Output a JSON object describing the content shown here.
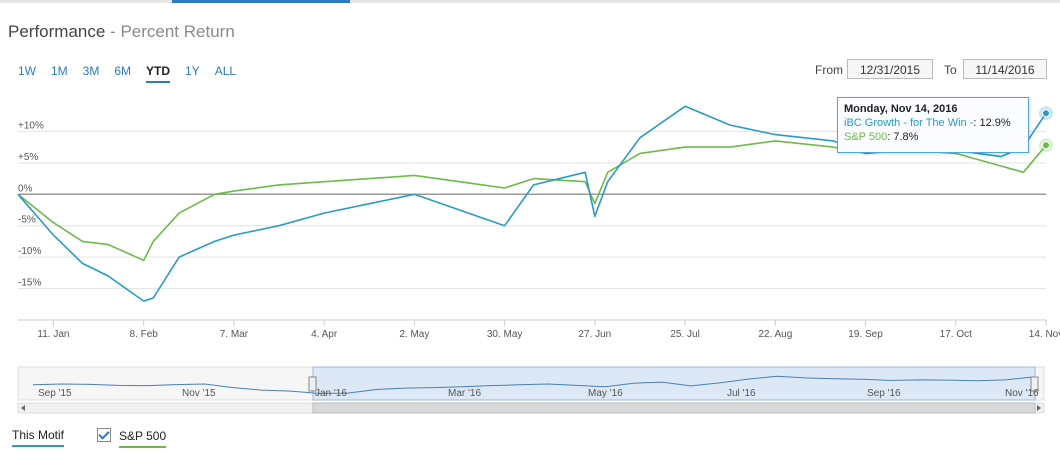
{
  "header": {
    "title": "Performance",
    "subtitle": "- Percent Return"
  },
  "range_buttons": [
    {
      "label": "1W",
      "active": false
    },
    {
      "label": "1M",
      "active": false
    },
    {
      "label": "3M",
      "active": false
    },
    {
      "label": "6M",
      "active": false
    },
    {
      "label": "YTD",
      "active": true
    },
    {
      "label": "1Y",
      "active": false
    },
    {
      "label": "ALL",
      "active": false
    }
  ],
  "date_range": {
    "from_label": "From",
    "from_value": "12/31/2015",
    "to_label": "To",
    "to_value": "11/14/2016"
  },
  "tooltip": {
    "date": "Monday, Nov 14, 2016",
    "series1_name": "iBC Growth - for The Win -",
    "series1_value": ": 12.9%",
    "series2_name": "S&P 500",
    "series2_value": ": 7.8%"
  },
  "legend": {
    "motif_label": "This Motif",
    "sp_label": "S&P 500",
    "sp_checked": true
  },
  "colors": {
    "motif": "#2a9bc6",
    "sp500": "#6cbb4a",
    "navigator_fill": "#dce8f6"
  },
  "navigator": {
    "labels": [
      "Sep '15",
      "Nov '15",
      "Jan '16",
      "Mar '16",
      "May '16",
      "Jul '16",
      "Sep '16",
      "Nov '16"
    ]
  },
  "chart_data": {
    "type": "line",
    "title": "",
    "xlabel": "",
    "ylabel": "",
    "x_ticks": [
      "11. Jan",
      "8. Feb",
      "7. Mar",
      "4. Apr",
      "2. May",
      "30. May",
      "27. Jun",
      "25. Jul",
      "22. Aug",
      "19. Sep",
      "17. Oct",
      "14. Nov"
    ],
    "y_ticks": [
      "+10%",
      "+5%",
      "0%",
      "-5%",
      "-10%",
      "-15%"
    ],
    "ylim": [
      -20,
      15
    ],
    "x": [
      "2015-12-31",
      "2016-01-11",
      "2016-01-20",
      "2016-01-28",
      "2016-02-08",
      "2016-02-11",
      "2016-02-19",
      "2016-03-01",
      "2016-03-07",
      "2016-03-21",
      "2016-04-04",
      "2016-04-18",
      "2016-05-02",
      "2016-05-16",
      "2016-05-30",
      "2016-06-08",
      "2016-06-24",
      "2016-06-27",
      "2016-07-01",
      "2016-07-11",
      "2016-07-25",
      "2016-08-08",
      "2016-08-22",
      "2016-09-09",
      "2016-09-19",
      "2016-10-03",
      "2016-10-17",
      "2016-10-31",
      "2016-11-07",
      "2016-11-14"
    ],
    "series": [
      {
        "name": "iBC Growth - for The Win -",
        "values": [
          0.0,
          -6.5,
          -11.0,
          -13.0,
          -17.0,
          -16.5,
          -10.0,
          -7.5,
          -6.5,
          -5.0,
          -3.0,
          -1.5,
          0.0,
          -2.5,
          -5.0,
          1.5,
          3.5,
          -3.5,
          2.0,
          9.0,
          14.0,
          11.0,
          9.5,
          8.5,
          6.5,
          7.5,
          7.0,
          6.0,
          7.5,
          12.9
        ]
      },
      {
        "name": "S&P 500",
        "values": [
          0.0,
          -4.5,
          -7.5,
          -8.0,
          -10.5,
          -7.5,
          -3.0,
          0.0,
          0.5,
          1.5,
          2.0,
          2.5,
          3.0,
          2.0,
          1.0,
          2.5,
          2.0,
          -1.5,
          3.5,
          6.5,
          7.5,
          7.5,
          8.5,
          7.5,
          6.5,
          7.0,
          6.5,
          4.5,
          3.5,
          7.8
        ]
      }
    ],
    "grid": true,
    "legend_position": "bottom-left"
  }
}
